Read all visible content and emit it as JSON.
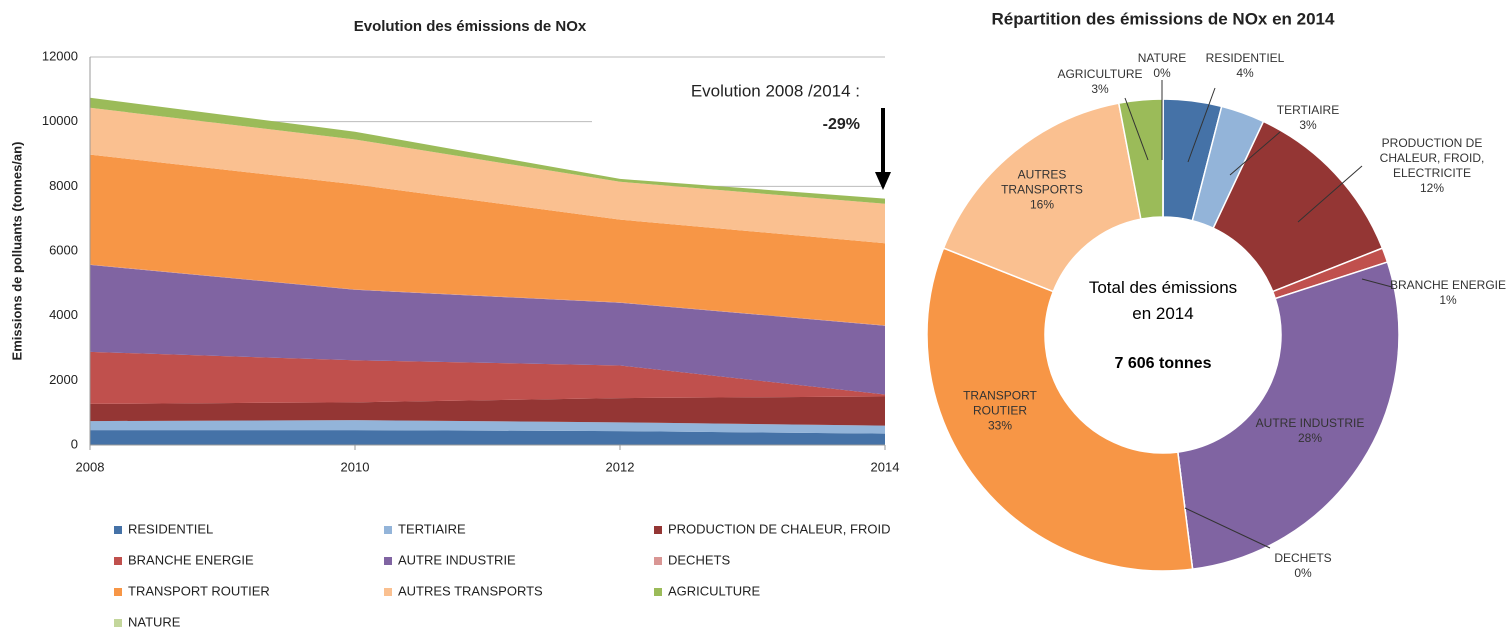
{
  "chart_data": [
    {
      "type": "area",
      "title": "Evolution des émissions de NOx",
      "y_label": "Emissions de polluants (tonnes/an)",
      "x": [
        2008,
        2010,
        2012,
        2014
      ],
      "xlim": [
        2008,
        2014
      ],
      "xticks": [
        2008,
        2010,
        2012,
        2014
      ],
      "ylim": [
        0,
        12000
      ],
      "yticks": [
        0,
        2000,
        4000,
        6000,
        8000,
        10000,
        12000
      ],
      "grid": true,
      "stacked": true,
      "annotation": "Evolution 2008 /2014 :",
      "annotation_value": "-29%",
      "series": [
        {
          "name": "RESIDENTIEL",
          "color": "#4572a7",
          "values": [
            460,
            460,
            430,
            350
          ]
        },
        {
          "name": "TERTIAIRE",
          "color": "#93b4d9",
          "values": [
            280,
            310,
            270,
            250
          ]
        },
        {
          "name": "PRODUCTION DE CHALEUR, FROID",
          "color": "#943634",
          "values": [
            530,
            550,
            750,
            900
          ]
        },
        {
          "name": "BRANCHE ENERGIE",
          "color": "#c0504d",
          "values": [
            1610,
            1300,
            1010,
            60
          ]
        },
        {
          "name": "AUTRE INDUSTRIE",
          "color": "#8064a2",
          "values": [
            2690,
            2180,
            1940,
            2130
          ]
        },
        {
          "name": "DECHETS",
          "color": "#d99694",
          "values": [
            10,
            10,
            10,
            10
          ]
        },
        {
          "name": "TRANSPORT ROUTIER",
          "color": "#f79646",
          "values": [
            3400,
            3250,
            2560,
            2540
          ]
        },
        {
          "name": "AUTRES TRANSPORTS",
          "color": "#fac090",
          "values": [
            1450,
            1390,
            1170,
            1220
          ]
        },
        {
          "name": "AGRICULTURE",
          "color": "#9bbb59",
          "values": [
            310,
            240,
            90,
            160
          ]
        },
        {
          "name": "NATURE",
          "color": "#c3d69b",
          "values": [
            0,
            0,
            0,
            0
          ]
        }
      ]
    },
    {
      "type": "donut",
      "title": "Répartition des émissions de NOx en 2014",
      "center_label": "Total des émissions en 2014",
      "total_label": "7 606 tonnes",
      "categories": [
        "RESIDENTIEL",
        "TERTIAIRE",
        "PRODUCTION DE CHALEUR, FROID, ELECTRICITE",
        "BRANCHE ENERGIE",
        "AUTRE INDUSTRIE",
        "DECHETS",
        "TRANSPORT ROUTIER",
        "AUTRES TRANSPORTS",
        "AGRICULTURE",
        "NATURE"
      ],
      "values": [
        4,
        3,
        12,
        1,
        28,
        0,
        33,
        16,
        3,
        0
      ],
      "value_labels": [
        "4%",
        "3%",
        "12%",
        "1%",
        "28%",
        "0%",
        "33%",
        "16%",
        "3%",
        "0%"
      ],
      "colors": [
        "#4572a7",
        "#93b4d9",
        "#943634",
        "#c0504d",
        "#8064a2",
        "#d99694",
        "#f79646",
        "#fac090",
        "#9bbb59",
        "#c3d69b"
      ]
    }
  ]
}
